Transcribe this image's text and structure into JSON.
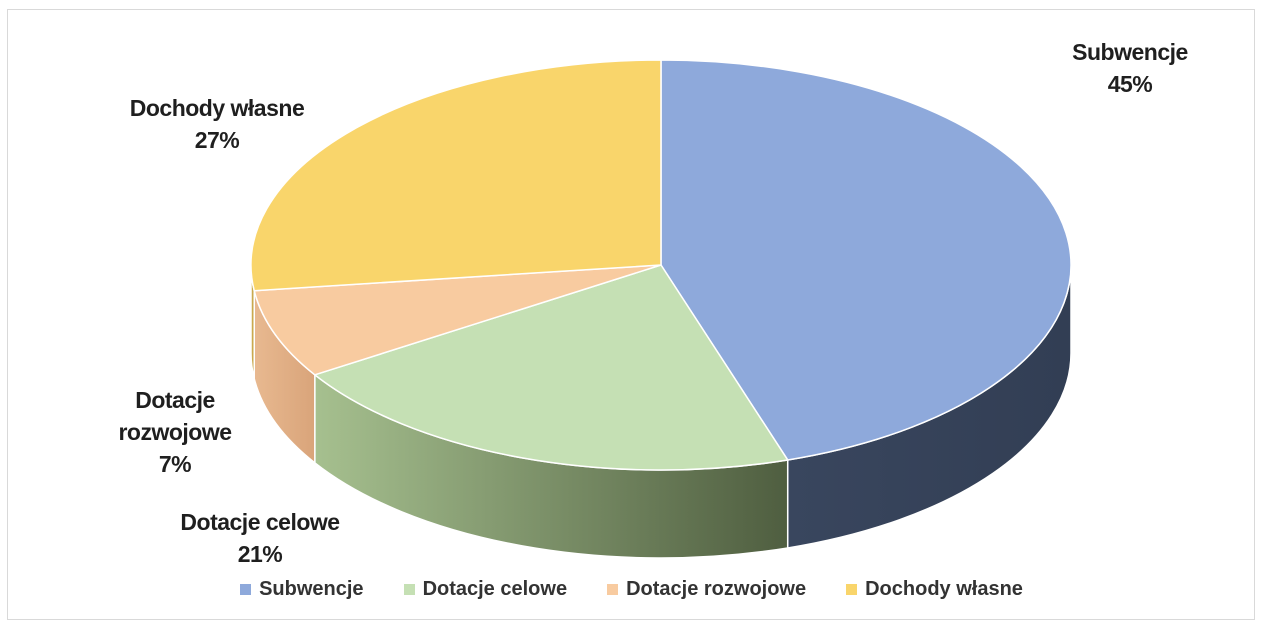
{
  "chart_data": {
    "type": "pie",
    "title": "",
    "style": "3d",
    "slices": [
      {
        "name": "Subwencje",
        "value": 45,
        "label": "45%",
        "color": "#8ea9db"
      },
      {
        "name": "Dotacje celowe",
        "value": 21,
        "label": "21%",
        "color": "#c5e0b4"
      },
      {
        "name": "Dotacje rozwojowe",
        "value": 7,
        "label": "7%",
        "color": "#f8cba0"
      },
      {
        "name": "Dochody własne",
        "value": 27,
        "label": "27%",
        "color": "#f9d56b"
      }
    ],
    "legend_position": "bottom"
  }
}
